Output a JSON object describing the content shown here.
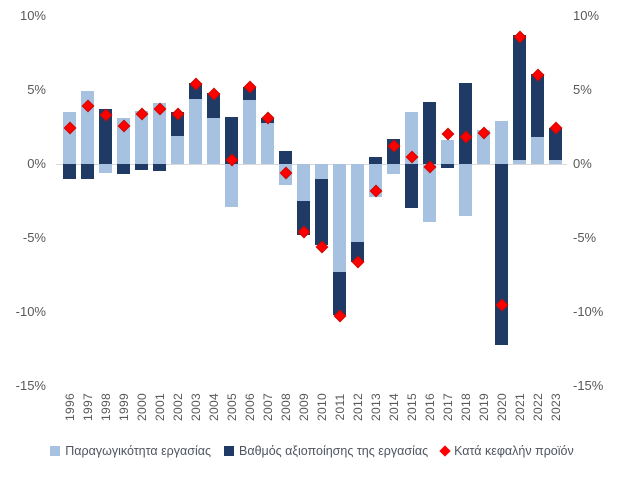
{
  "chart_data": {
    "type": "bar",
    "subtype": "stacked-bars-with-diamond-markers",
    "title": "",
    "categories": [
      1996,
      1997,
      1998,
      1999,
      2000,
      2001,
      2002,
      2003,
      2004,
      2005,
      2006,
      2007,
      2008,
      2009,
      2010,
      2011,
      2012,
      2013,
      2014,
      2015,
      2016,
      2017,
      2018,
      2019,
      2020,
      2021,
      2022,
      2023
    ],
    "series": [
      {
        "name": "Παραγωγικότητα εργασίας",
        "role": "bar",
        "color": "#a6c2e0",
        "values": [
          3.5,
          4.9,
          -0.6,
          3.1,
          3.6,
          4.1,
          1.9,
          4.4,
          3.1,
          -2.9,
          4.3,
          2.8,
          -1.4,
          -2.5,
          -1.0,
          -7.3,
          -5.3,
          -2.2,
          -0.7,
          3.5,
          -3.9,
          1.6,
          -3.5,
          2.3,
          2.9,
          0.3,
          1.8,
          0.3
        ]
      },
      {
        "name": "Βαθμός αξιοποίησης της εργασίας",
        "role": "bar",
        "color": "#1f3a64",
        "values": [
          -1.0,
          -1.0,
          3.7,
          -0.7,
          -0.4,
          -0.5,
          1.6,
          1.1,
          1.7,
          3.2,
          0.9,
          0.3,
          0.9,
          -2.3,
          -4.5,
          -2.9,
          -1.3,
          0.5,
          1.7,
          -3.0,
          4.2,
          -0.3,
          5.5,
          0.0,
          -12.2,
          8.4,
          4.3,
          2.1
        ]
      },
      {
        "name": "Κατά κεφαλήν προϊόν",
        "role": "marker",
        "color": "#ff0000",
        "values": [
          2.4,
          3.9,
          3.3,
          2.6,
          3.4,
          3.7,
          3.4,
          5.4,
          4.7,
          0.3,
          5.2,
          3.1,
          -0.6,
          -4.6,
          -5.6,
          -10.3,
          -6.6,
          -1.8,
          1.2,
          0.5,
          -0.2,
          2.0,
          1.8,
          2.1,
          -9.5,
          8.6,
          6.0,
          2.4
        ]
      }
    ],
    "y_axis": {
      "tick_labels": [
        "10%",
        "5%",
        "0%",
        "-5%",
        "-10%",
        "-15%"
      ],
      "tick_values": [
        10,
        5,
        0,
        -5,
        -10,
        -15
      ],
      "range": [
        -15,
        10
      ],
      "sides": "both"
    },
    "grid": false,
    "legend_position": "bottom"
  },
  "legend": {
    "items": [
      {
        "label": "Παραγωγικότητα εργασίας",
        "swatch": "square",
        "color": "#a6c2e0"
      },
      {
        "label": "Βαθμός αξιοποίησης της εργασίας",
        "swatch": "square",
        "color": "#1f3a64"
      },
      {
        "label": "Κατά κεφαλήν προϊόν",
        "swatch": "diamond",
        "color": "#ff0000"
      }
    ]
  }
}
